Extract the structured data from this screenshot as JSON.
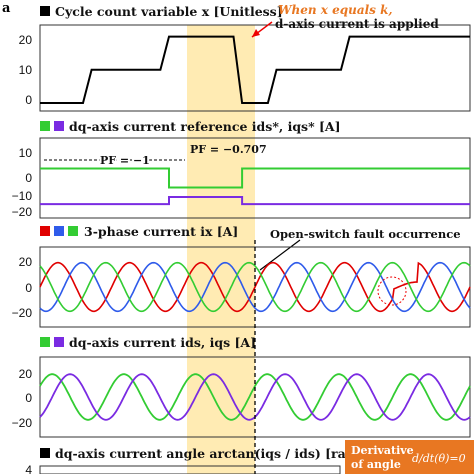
{
  "figure_label": "a",
  "hl_color": "#FFE8A6",
  "colors": {
    "black": "#000000",
    "green": "#33CC33",
    "purple": "#7A2BE2",
    "red": "#E00000",
    "blue": "#2F5BEA",
    "orange": "#E87722"
  },
  "panels": [
    {
      "id": "p1",
      "title": "Cycle count variable x [Unitless]",
      "swatches": [
        "black"
      ],
      "yticks": [
        "20",
        "10",
        "0"
      ]
    },
    {
      "id": "p2",
      "title": "dq-axis current reference ids*, iqs* [A]",
      "swatches": [
        "green",
        "purple"
      ],
      "yticks": [
        "10",
        "0",
        "−10",
        "−20"
      ]
    },
    {
      "id": "p3",
      "title": "3-phase current ix [A]",
      "swatches": [
        "red",
        "blue",
        "green"
      ],
      "yticks": [
        "20",
        "0",
        "−20"
      ]
    },
    {
      "id": "p4",
      "title": "dq-axis current ids, iqs [A]",
      "swatches": [
        "green",
        "purple"
      ],
      "yticks": [
        "20",
        "0",
        "−20"
      ]
    },
    {
      "id": "p5",
      "title": "dq-axis current angle arctan(iqs / ids) [rad]",
      "swatches": [
        "black"
      ],
      "yticks": [
        "4"
      ]
    }
  ],
  "annotations": {
    "when_x_line1": "When x equals k,",
    "when_x_line2": "d-axis current is applied",
    "pf1": "PF = −1",
    "pf2": "PF = −0.707",
    "fault": "Open-switch fault occurrence",
    "derivative_line1": "Derivative",
    "derivative_line2": "of angle"
  },
  "chart_data": [
    {
      "type": "line",
      "panel": "p1",
      "ylim": [
        0,
        22
      ],
      "series": [
        {
          "color": "black",
          "steps": [
            [
              0,
              0
            ],
            [
              0.1,
              0
            ],
            [
              0.12,
              10
            ],
            [
              0.28,
              10
            ],
            [
              0.3,
              20
            ],
            [
              0.45,
              20
            ],
            [
              0.47,
              0
            ],
            [
              0.53,
              0
            ],
            [
              0.55,
              10
            ],
            [
              0.7,
              10
            ],
            [
              0.72,
              20
            ],
            [
              1,
              20
            ]
          ]
        }
      ]
    },
    {
      "type": "line",
      "panel": "p2",
      "ylim": [
        -20,
        12
      ],
      "series": [
        {
          "color": "green",
          "steps": [
            [
              0,
              0
            ],
            [
              0.3,
              0
            ],
            [
              0.3,
              -8
            ],
            [
              0.47,
              -8
            ],
            [
              0.47,
              0
            ],
            [
              1,
              0
            ]
          ]
        },
        {
          "color": "purple",
          "steps": [
            [
              0,
              -15
            ],
            [
              0.3,
              -15
            ],
            [
              0.3,
              -12
            ],
            [
              0.47,
              -12
            ],
            [
              0.47,
              -15
            ],
            [
              1,
              -15
            ]
          ]
        }
      ]
    },
    {
      "type": "line",
      "panel": "p3",
      "ylim": [
        -25,
        25
      ],
      "amplitude": 16,
      "cycles": 6
    },
    {
      "type": "line",
      "panel": "p4",
      "ylim": [
        -25,
        25
      ],
      "amplitude": 15,
      "cycles": 6
    }
  ]
}
